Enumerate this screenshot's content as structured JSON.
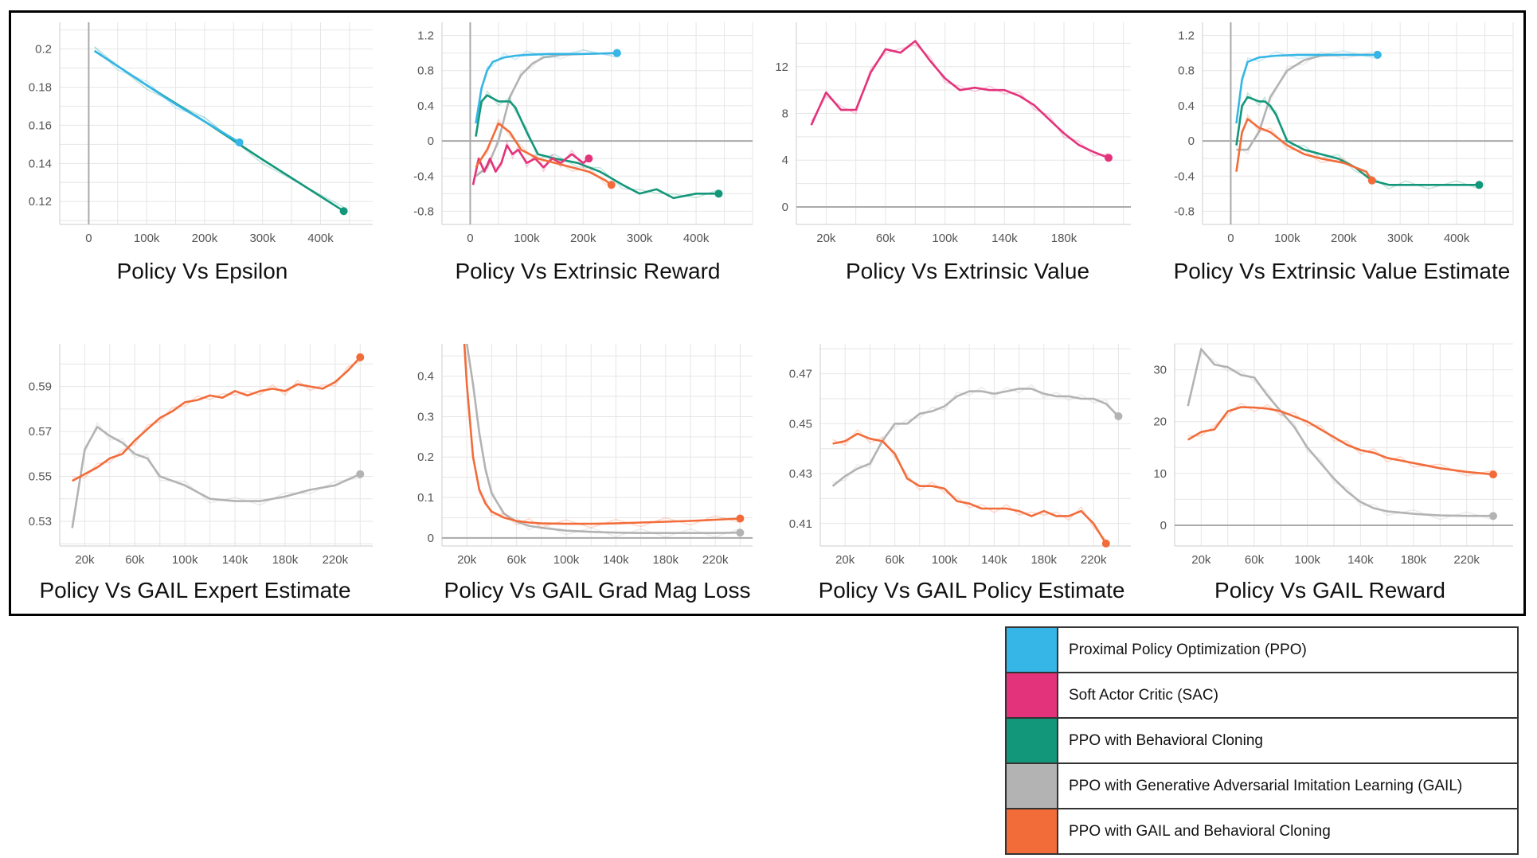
{
  "colors": {
    "ppo": "#35b6e6",
    "sac": "#e3337b",
    "bc": "#13977a",
    "gail": "#b3b3b3",
    "gail_bc": "#f26c3a"
  },
  "legend": [
    {
      "key": "ppo",
      "label": "Proximal Policy Optimization (PPO)"
    },
    {
      "key": "sac",
      "label": "Soft Actor Critic (SAC)"
    },
    {
      "key": "bc",
      "label": "PPO with Behavioral Cloning"
    },
    {
      "key": "gail",
      "label": "PPO with Generative Adversarial Imitation Learning (GAIL)"
    },
    {
      "key": "gail_bc",
      "label": "PPO with GAIL and Behavioral Cloning"
    }
  ],
  "chart_data": [
    {
      "type": "line",
      "title": "Policy Vs Epsilon",
      "xlim": [
        -50000,
        490000
      ],
      "ylim": [
        0.108,
        0.214
      ],
      "xticks": [
        0,
        100000,
        200000,
        300000,
        400000
      ],
      "xtick_labels": [
        "0",
        "100k",
        "200k",
        "300k",
        "400k"
      ],
      "yticks": [
        0.12,
        0.14,
        0.16,
        0.18,
        0.2
      ],
      "ytick_labels": [
        "0.12",
        "0.14",
        "0.16",
        "0.18",
        "0.2"
      ],
      "zero_line": false,
      "series": [
        {
          "key": "bc",
          "x": [
            10000,
            100000,
            200000,
            300000,
            440000
          ],
          "y": [
            0.199,
            0.181,
            0.162,
            0.142,
            0.115
          ]
        },
        {
          "key": "ppo",
          "x": [
            10000,
            50000,
            100000,
            150000,
            200000,
            260000
          ],
          "y": [
            0.199,
            0.191,
            0.181,
            0.171,
            0.162,
            0.151
          ]
        }
      ]
    },
    {
      "type": "line",
      "title": "Policy Vs Extrinsic Reward",
      "xlim": [
        -50000,
        500000
      ],
      "ylim": [
        -0.95,
        1.35
      ],
      "xticks": [
        0,
        100000,
        200000,
        300000,
        400000
      ],
      "xtick_labels": [
        "0",
        "100k",
        "200k",
        "300k",
        "400k"
      ],
      "yticks": [
        -0.8,
        -0.4,
        0,
        0.4,
        0.8,
        1.2
      ],
      "ytick_labels": [
        "-0.8",
        "-0.4",
        "0",
        "0.4",
        "0.8",
        "1.2"
      ],
      "zero_line": true,
      "series": [
        {
          "key": "gail",
          "x": [
            10000,
            30000,
            50000,
            70000,
            90000,
            110000,
            130000,
            160000,
            200000,
            260000
          ],
          "y": [
            -0.4,
            -0.3,
            0.0,
            0.5,
            0.75,
            0.88,
            0.95,
            0.98,
            0.99,
            1.0
          ]
        },
        {
          "key": "ppo",
          "x": [
            10000,
            20000,
            30000,
            40000,
            60000,
            80000,
            100000,
            140000,
            200000,
            260000
          ],
          "y": [
            0.2,
            0.6,
            0.8,
            0.9,
            0.95,
            0.97,
            0.98,
            0.99,
            0.99,
            1.0
          ]
        },
        {
          "key": "bc",
          "x": [
            10000,
            20000,
            30000,
            50000,
            70000,
            80000,
            100000,
            120000,
            150000,
            190000,
            230000,
            270000,
            300000,
            330000,
            360000,
            400000,
            440000
          ],
          "y": [
            0.05,
            0.45,
            0.52,
            0.45,
            0.45,
            0.38,
            0.1,
            -0.15,
            -0.2,
            -0.25,
            -0.35,
            -0.5,
            -0.6,
            -0.55,
            -0.65,
            -0.6,
            -0.6
          ]
        },
        {
          "key": "sac",
          "x": [
            5000,
            15000,
            25000,
            35000,
            45000,
            55000,
            65000,
            75000,
            85000,
            100000,
            115000,
            130000,
            145000,
            160000,
            180000,
            200000,
            210000
          ],
          "y": [
            -0.5,
            -0.2,
            -0.35,
            -0.2,
            -0.35,
            -0.25,
            -0.05,
            -0.15,
            -0.1,
            -0.25,
            -0.2,
            -0.3,
            -0.2,
            -0.25,
            -0.15,
            -0.25,
            -0.2
          ]
        },
        {
          "key": "gail_bc",
          "x": [
            10000,
            30000,
            50000,
            70000,
            90000,
            120000,
            150000,
            180000,
            210000,
            240000,
            250000
          ],
          "y": [
            -0.3,
            -0.1,
            0.2,
            0.1,
            -0.1,
            -0.2,
            -0.25,
            -0.3,
            -0.35,
            -0.45,
            -0.5
          ]
        }
      ]
    },
    {
      "type": "line",
      "title": "Policy Vs Extrinsic Value",
      "xlim": [
        0,
        225000
      ],
      "ylim": [
        -1.5,
        15.8
      ],
      "xticks": [
        20000,
        60000,
        100000,
        140000,
        180000
      ],
      "xtick_labels": [
        "20k",
        "60k",
        "100k",
        "140k",
        "180k"
      ],
      "yticks": [
        0,
        4,
        8,
        12
      ],
      "ytick_labels": [
        "0",
        "4",
        "8",
        "12"
      ],
      "zero_line": true,
      "series": [
        {
          "key": "sac",
          "x": [
            10000,
            20000,
            30000,
            40000,
            50000,
            60000,
            70000,
            80000,
            90000,
            100000,
            110000,
            120000,
            130000,
            140000,
            150000,
            160000,
            170000,
            180000,
            190000,
            200000,
            210000
          ],
          "y": [
            7.0,
            9.8,
            8.3,
            8.3,
            11.5,
            13.5,
            13.2,
            14.2,
            12.5,
            11.0,
            10.0,
            10.2,
            10.0,
            10.0,
            9.5,
            8.7,
            7.5,
            6.3,
            5.3,
            4.7,
            4.2
          ]
        }
      ]
    },
    {
      "type": "line",
      "title": "Policy Vs Extrinsic Value Estimate",
      "xlim": [
        -50000,
        500000
      ],
      "ylim": [
        -0.95,
        1.35
      ],
      "xticks": [
        0,
        100000,
        200000,
        300000,
        400000
      ],
      "xtick_labels": [
        "0",
        "100k",
        "200k",
        "300k",
        "400k"
      ],
      "yticks": [
        -0.8,
        -0.4,
        0,
        0.4,
        0.8,
        1.2
      ],
      "ytick_labels": [
        "-0.8",
        "-0.4",
        "0",
        "0.4",
        "0.8",
        "1.2"
      ],
      "zero_line": true,
      "series": [
        {
          "key": "gail",
          "x": [
            10000,
            30000,
            50000,
            70000,
            100000,
            130000,
            160000,
            200000,
            260000
          ],
          "y": [
            -0.1,
            -0.1,
            0.1,
            0.5,
            0.8,
            0.92,
            0.97,
            0.98,
            0.98
          ]
        },
        {
          "key": "ppo",
          "x": [
            10000,
            20000,
            30000,
            50000,
            80000,
            120000,
            200000,
            260000
          ],
          "y": [
            0.2,
            0.7,
            0.9,
            0.95,
            0.97,
            0.98,
            0.98,
            0.98
          ]
        },
        {
          "key": "bc",
          "x": [
            10000,
            20000,
            30000,
            50000,
            60000,
            70000,
            80000,
            100000,
            130000,
            160000,
            190000,
            220000,
            250000,
            280000,
            310000,
            350000,
            400000,
            440000
          ],
          "y": [
            -0.05,
            0.4,
            0.5,
            0.45,
            0.45,
            0.4,
            0.3,
            0.0,
            -0.1,
            -0.15,
            -0.2,
            -0.3,
            -0.45,
            -0.5,
            -0.5,
            -0.5,
            -0.5,
            -0.5
          ]
        },
        {
          "key": "gail_bc",
          "x": [
            10000,
            20000,
            30000,
            50000,
            70000,
            100000,
            130000,
            160000,
            200000,
            240000,
            250000
          ],
          "y": [
            -0.35,
            0.1,
            0.25,
            0.15,
            0.1,
            -0.05,
            -0.15,
            -0.2,
            -0.25,
            -0.35,
            -0.45
          ]
        }
      ]
    },
    {
      "type": "line",
      "title": "Policy Vs GAIL Expert Estimate",
      "xlim": [
        0,
        250000
      ],
      "ylim": [
        0.519,
        0.609
      ],
      "xticks": [
        20000,
        60000,
        100000,
        140000,
        180000,
        220000
      ],
      "xtick_labels": [
        "20k",
        "60k",
        "100k",
        "140k",
        "180k",
        "220k"
      ],
      "yticks": [
        0.53,
        0.55,
        0.57,
        0.59
      ],
      "ytick_labels": [
        "0.53",
        "0.55",
        "0.57",
        "0.59"
      ],
      "zero_line": false,
      "series": [
        {
          "key": "gail",
          "x": [
            10000,
            20000,
            30000,
            40000,
            50000,
            60000,
            70000,
            80000,
            100000,
            120000,
            140000,
            160000,
            180000,
            200000,
            220000,
            240000
          ],
          "y": [
            0.527,
            0.562,
            0.572,
            0.568,
            0.565,
            0.56,
            0.558,
            0.55,
            0.546,
            0.54,
            0.539,
            0.539,
            0.541,
            0.544,
            0.546,
            0.551
          ]
        },
        {
          "key": "gail_bc",
          "x": [
            10000,
            20000,
            30000,
            40000,
            50000,
            60000,
            70000,
            80000,
            90000,
            100000,
            110000,
            120000,
            130000,
            140000,
            150000,
            160000,
            170000,
            180000,
            190000,
            200000,
            210000,
            220000,
            230000,
            240000
          ],
          "y": [
            0.548,
            0.551,
            0.554,
            0.558,
            0.56,
            0.566,
            0.571,
            0.576,
            0.579,
            0.583,
            0.584,
            0.586,
            0.585,
            0.588,
            0.586,
            0.588,
            0.589,
            0.588,
            0.591,
            0.59,
            0.589,
            0.592,
            0.597,
            0.603
          ]
        }
      ]
    },
    {
      "type": "line",
      "title": "Policy Vs GAIL Grad Mag Loss",
      "xlim": [
        0,
        250000
      ],
      "ylim": [
        -0.02,
        0.48
      ],
      "xticks": [
        20000,
        60000,
        100000,
        140000,
        180000,
        220000
      ],
      "xtick_labels": [
        "20k",
        "60k",
        "100k",
        "140k",
        "180k",
        "220k"
      ],
      "yticks": [
        0,
        0.1,
        0.2,
        0.3,
        0.4
      ],
      "ytick_labels": [
        "0",
        "0.1",
        "0.2",
        "0.3",
        "0.4"
      ],
      "zero_line": true,
      "series": [
        {
          "key": "gail",
          "x": [
            20000,
            25000,
            30000,
            35000,
            40000,
            50000,
            60000,
            70000,
            80000,
            100000,
            120000,
            140000,
            160000,
            180000,
            200000,
            220000,
            240000
          ],
          "y": [
            0.48,
            0.38,
            0.26,
            0.17,
            0.11,
            0.06,
            0.04,
            0.03,
            0.025,
            0.018,
            0.015,
            0.013,
            0.012,
            0.012,
            0.012,
            0.012,
            0.013
          ]
        },
        {
          "key": "gail_bc",
          "x": [
            18000,
            20000,
            25000,
            30000,
            35000,
            40000,
            50000,
            60000,
            70000,
            80000,
            100000,
            120000,
            140000,
            160000,
            180000,
            200000,
            220000,
            240000
          ],
          "y": [
            0.48,
            0.38,
            0.2,
            0.12,
            0.085,
            0.065,
            0.05,
            0.042,
            0.038,
            0.036,
            0.035,
            0.035,
            0.036,
            0.038,
            0.04,
            0.042,
            0.045,
            0.048
          ]
        }
      ]
    },
    {
      "type": "line",
      "title": "Policy Vs GAIL Policy Estimate",
      "xlim": [
        0,
        250000
      ],
      "ylim": [
        0.401,
        0.482
      ],
      "xticks": [
        20000,
        60000,
        100000,
        140000,
        180000,
        220000
      ],
      "xtick_labels": [
        "20k",
        "60k",
        "100k",
        "140k",
        "180k",
        "220k"
      ],
      "yticks": [
        0.41,
        0.43,
        0.45,
        0.47
      ],
      "ytick_labels": [
        "0.41",
        "0.43",
        "0.45",
        "0.47"
      ],
      "zero_line": false,
      "series": [
        {
          "key": "gail",
          "x": [
            10000,
            20000,
            30000,
            40000,
            50000,
            60000,
            70000,
            80000,
            90000,
            100000,
            110000,
            120000,
            130000,
            140000,
            150000,
            160000,
            170000,
            180000,
            190000,
            200000,
            210000,
            220000,
            230000,
            240000
          ],
          "y": [
            0.425,
            0.429,
            0.432,
            0.434,
            0.443,
            0.45,
            0.45,
            0.454,
            0.455,
            0.457,
            0.461,
            0.463,
            0.463,
            0.462,
            0.463,
            0.464,
            0.464,
            0.462,
            0.461,
            0.461,
            0.46,
            0.46,
            0.458,
            0.453
          ]
        },
        {
          "key": "gail_bc",
          "x": [
            10000,
            20000,
            30000,
            40000,
            50000,
            60000,
            70000,
            80000,
            90000,
            100000,
            110000,
            120000,
            130000,
            140000,
            150000,
            160000,
            170000,
            180000,
            190000,
            200000,
            210000,
            220000,
            230000
          ],
          "y": [
            0.442,
            0.443,
            0.446,
            0.444,
            0.443,
            0.438,
            0.428,
            0.425,
            0.425,
            0.424,
            0.419,
            0.418,
            0.416,
            0.416,
            0.416,
            0.415,
            0.413,
            0.415,
            0.413,
            0.413,
            0.415,
            0.41,
            0.402
          ]
        }
      ]
    },
    {
      "type": "line",
      "title": "Policy Vs GAIL Reward",
      "xlim": [
        0,
        255000
      ],
      "ylim": [
        -4,
        35
      ],
      "xticks": [
        20000,
        60000,
        100000,
        140000,
        180000,
        220000
      ],
      "xtick_labels": [
        "20k",
        "60k",
        "100k",
        "140k",
        "180k",
        "220k"
      ],
      "yticks": [
        0,
        10,
        20,
        30
      ],
      "ytick_labels": [
        "0",
        "10",
        "20",
        "30"
      ],
      "zero_line": true,
      "series": [
        {
          "key": "gail",
          "x": [
            10000,
            20000,
            30000,
            40000,
            50000,
            60000,
            70000,
            80000,
            90000,
            100000,
            110000,
            120000,
            130000,
            140000,
            150000,
            160000,
            180000,
            200000,
            220000,
            240000
          ],
          "y": [
            23,
            34,
            31,
            30.5,
            29,
            28.5,
            25,
            22,
            19,
            15,
            12,
            9,
            6.5,
            4.5,
            3.3,
            2.7,
            2.2,
            1.9,
            1.8,
            1.8
          ]
        },
        {
          "key": "gail_bc",
          "x": [
            10000,
            20000,
            30000,
            40000,
            50000,
            60000,
            70000,
            80000,
            90000,
            100000,
            110000,
            120000,
            130000,
            140000,
            150000,
            160000,
            170000,
            180000,
            200000,
            220000,
            240000
          ],
          "y": [
            16.5,
            18,
            18.5,
            22,
            22.8,
            22.7,
            22.5,
            22,
            21,
            20,
            18.5,
            17,
            15.5,
            14.5,
            14,
            13,
            12.5,
            12,
            11,
            10.3,
            9.8
          ]
        }
      ]
    }
  ]
}
